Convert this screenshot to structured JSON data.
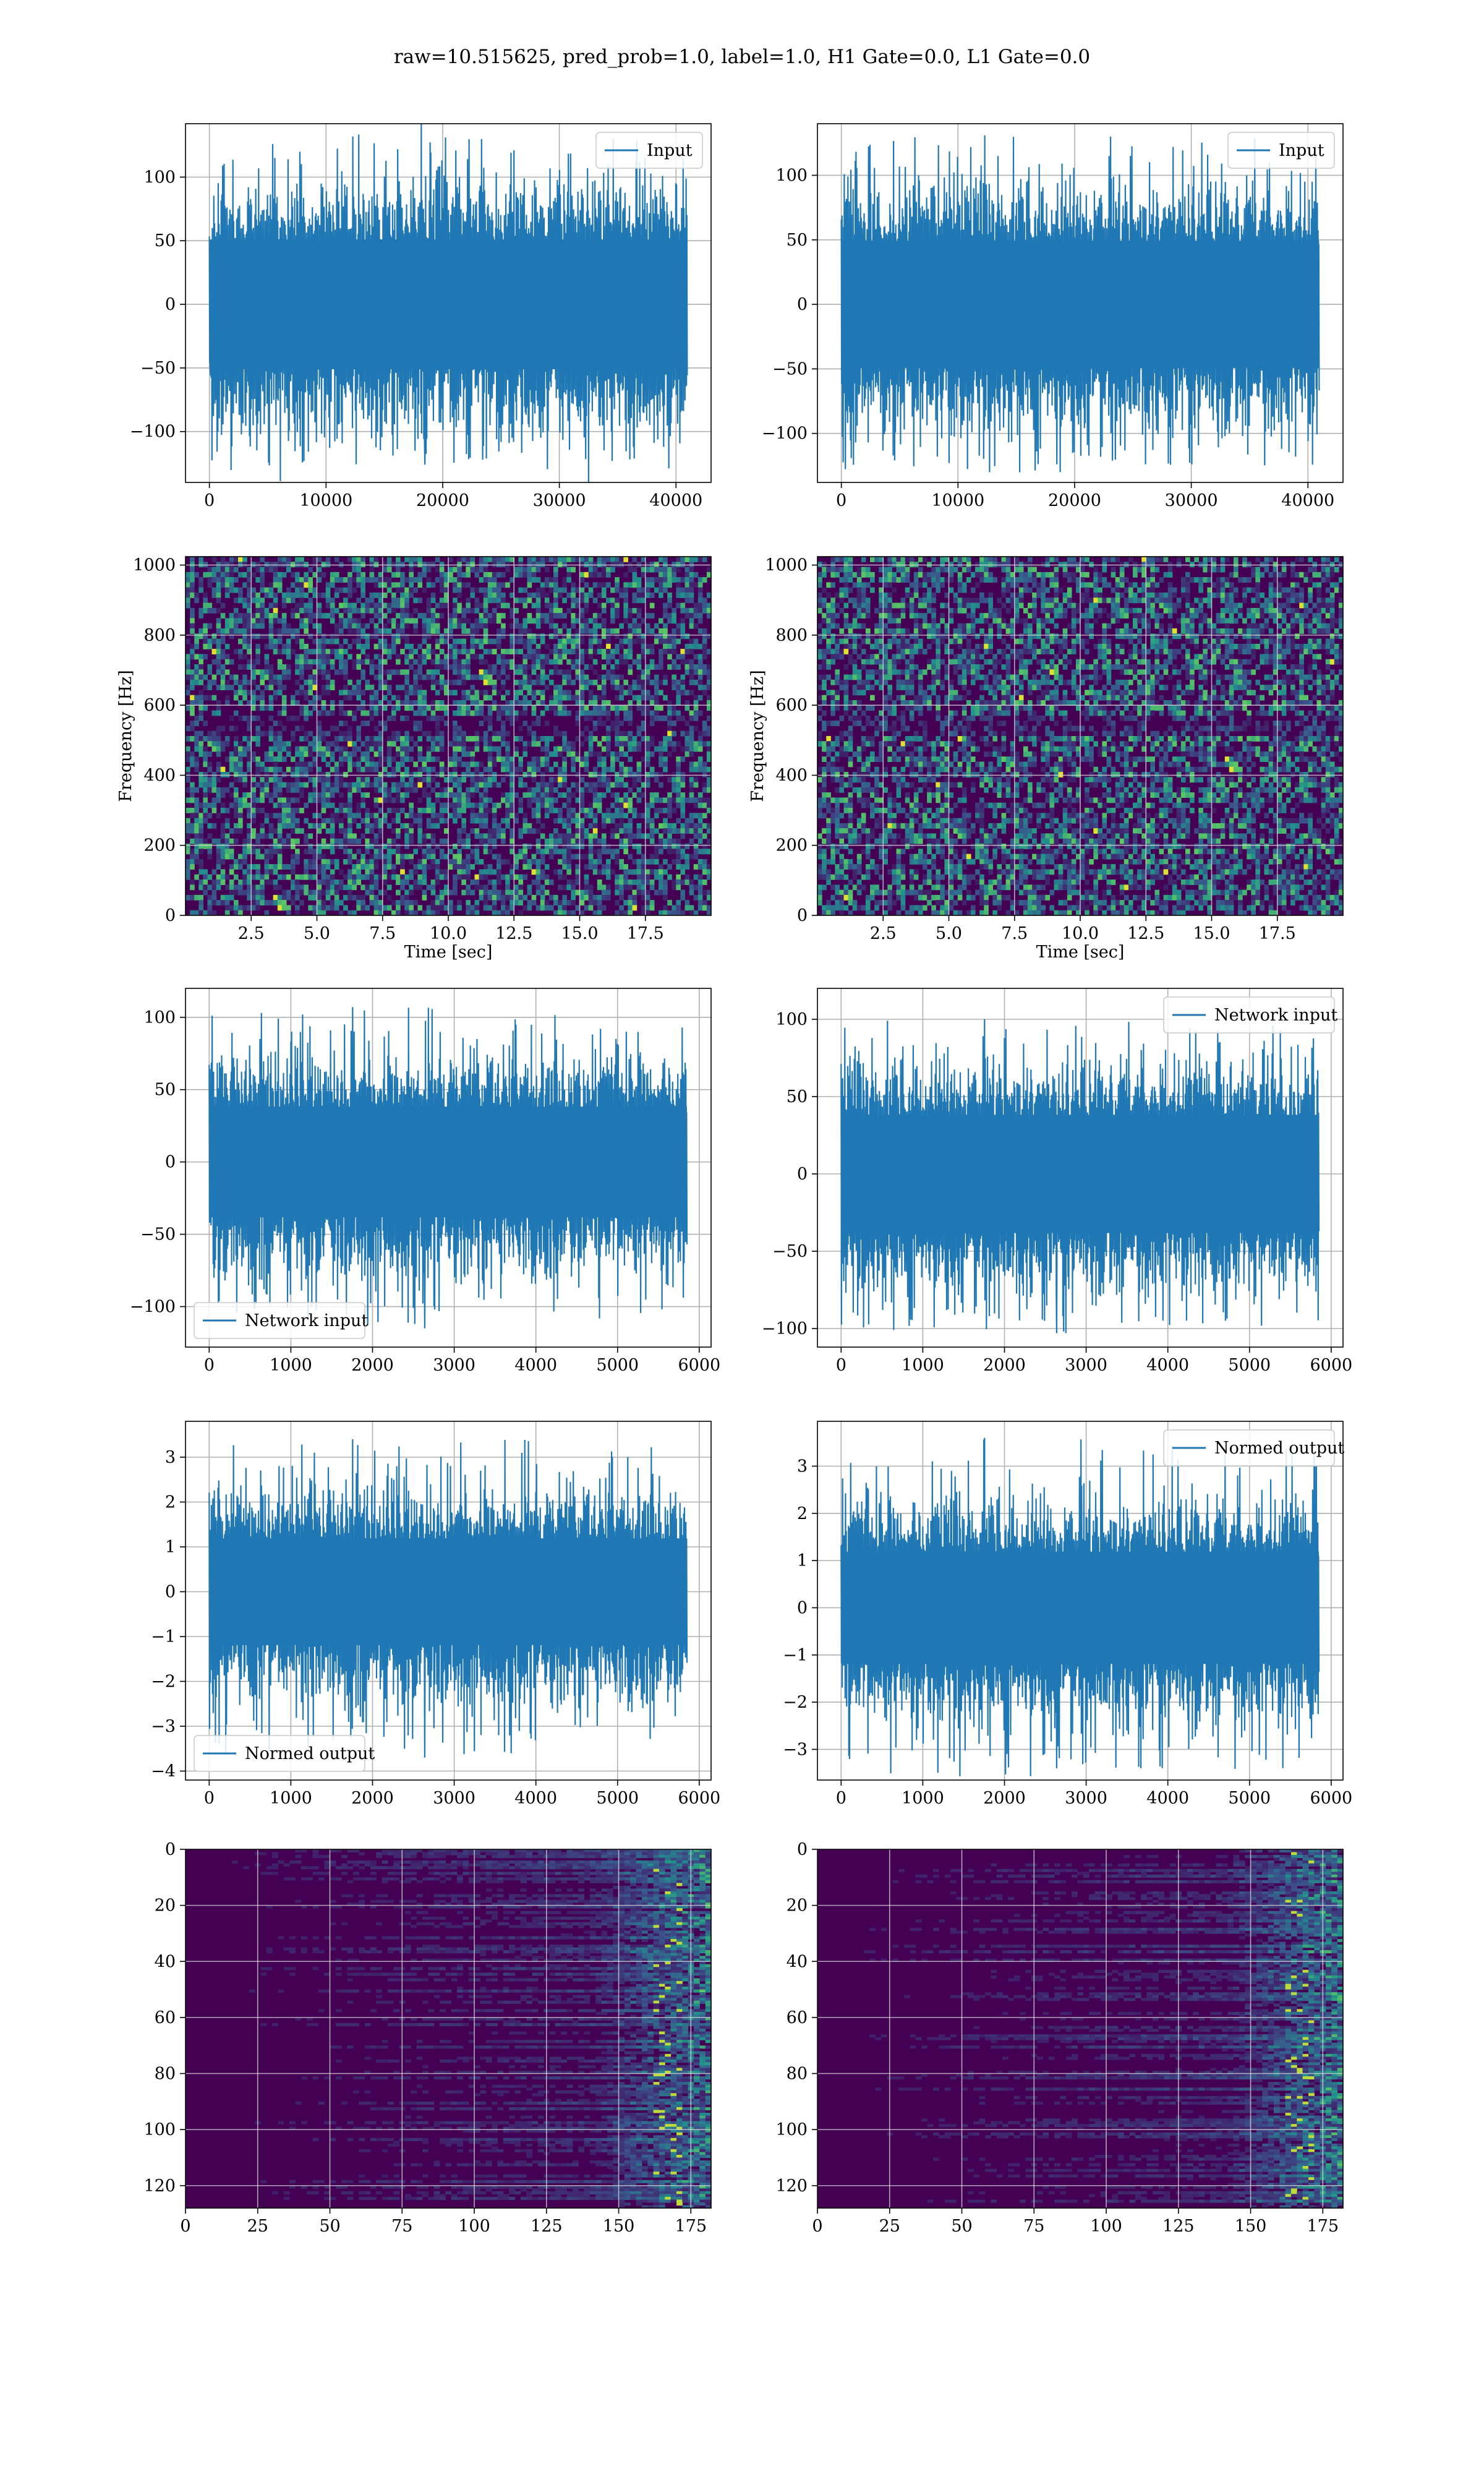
{
  "figure": {
    "suptitle": "raw=10.515625, pred_prob=1.0, label=1.0, H1 Gate=0.0, L1 Gate=0.0",
    "colors": {
      "line": "#1f77b4",
      "grid": "#b0b0b0",
      "viridis_low": "#440154",
      "viridis_mid": "#21918c",
      "viridis_high": "#fde725"
    }
  },
  "chart_data": [
    {
      "type": "line",
      "row": 1,
      "col": "left",
      "legend": "Input",
      "legend_loc": "upper right",
      "x": [
        0,
        40960
      ],
      "xlim": [
        -2048,
        43008
      ],
      "xticks": [
        0,
        10000,
        20000,
        30000,
        40000
      ],
      "ylim": [
        -140,
        142
      ],
      "yticks": [
        -100,
        -50,
        0,
        50,
        100
      ],
      "grid": true,
      "series": [
        {
          "name": "Input",
          "core_amplitude": 60,
          "peak_max": 132,
          "peak_min": -126
        }
      ]
    },
    {
      "type": "line",
      "row": 1,
      "col": "right",
      "legend": "Input",
      "legend_loc": "upper right",
      "x": [
        0,
        40960
      ],
      "xlim": [
        -2048,
        43008
      ],
      "xticks": [
        0,
        10000,
        20000,
        30000,
        40000
      ],
      "ylim": [
        -138,
        140
      ],
      "yticks": [
        -100,
        -50,
        0,
        50,
        100
      ],
      "grid": true,
      "series": [
        {
          "name": "Input",
          "core_amplitude": 58,
          "peak_max": 131,
          "peak_min": -124
        }
      ]
    },
    {
      "type": "heatmap",
      "row": 2,
      "col": "left",
      "xlabel": "Time [sec]",
      "ylabel": "Frequency [Hz]",
      "xlim": [
        0,
        20
      ],
      "xticks": [
        2.5,
        5.0,
        7.5,
        10.0,
        12.5,
        15.0,
        17.5
      ],
      "ylim": [
        0,
        1024
      ],
      "yticks": [
        0,
        200,
        400,
        600,
        800,
        1000
      ],
      "grid": true,
      "colormap": "viridis"
    },
    {
      "type": "heatmap",
      "row": 2,
      "col": "right",
      "xlabel": "Time [sec]",
      "ylabel": "Frequency [Hz]",
      "xlim": [
        0,
        20
      ],
      "xticks": [
        2.5,
        5.0,
        7.5,
        10.0,
        12.5,
        15.0,
        17.5
      ],
      "ylim": [
        0,
        1024
      ],
      "yticks": [
        0,
        200,
        400,
        600,
        800,
        1000
      ],
      "grid": true,
      "colormap": "viridis"
    },
    {
      "type": "line",
      "row": 3,
      "col": "left",
      "legend": "Network input",
      "legend_loc": "lower left",
      "x": [
        0,
        5850
      ],
      "xlim": [
        -290,
        6145
      ],
      "xticks": [
        0,
        1000,
        2000,
        3000,
        4000,
        5000,
        6000
      ],
      "ylim": [
        -128,
        120
      ],
      "yticks": [
        -100,
        -50,
        0,
        50,
        100
      ],
      "grid": true,
      "series": [
        {
          "name": "Network input",
          "core_amplitude": 45,
          "peak_max": 107,
          "peak_min": -115
        }
      ]
    },
    {
      "type": "line",
      "row": 3,
      "col": "right",
      "legend": "Network input",
      "legend_loc": "upper right",
      "x": [
        0,
        5850
      ],
      "xlim": [
        -290,
        6145
      ],
      "xticks": [
        0,
        1000,
        2000,
        3000,
        4000,
        5000,
        6000
      ],
      "ylim": [
        -112,
        120
      ],
      "yticks": [
        -100,
        -50,
        0,
        50,
        100
      ],
      "grid": true,
      "series": [
        {
          "name": "Network input",
          "core_amplitude": 45,
          "peak_max": 100,
          "peak_min": -103
        }
      ]
    },
    {
      "type": "line",
      "row": 4,
      "col": "left",
      "legend": "Normed output",
      "legend_loc": "lower left",
      "x": [
        0,
        5850
      ],
      "xlim": [
        -290,
        6145
      ],
      "xticks": [
        0,
        1000,
        2000,
        3000,
        4000,
        5000,
        6000
      ],
      "ylim": [
        -4.2,
        3.8
      ],
      "yticks": [
        -4,
        -3,
        -2,
        -1,
        0,
        1,
        2,
        3
      ],
      "grid": true,
      "series": [
        {
          "name": "Normed output",
          "core_amplitude": 1.4,
          "peak_max": 3.4,
          "peak_min": -3.7
        }
      ]
    },
    {
      "type": "line",
      "row": 4,
      "col": "right",
      "legend": "Normed output",
      "legend_loc": "upper right",
      "x": [
        0,
        5850
      ],
      "xlim": [
        -290,
        6145
      ],
      "xticks": [
        0,
        1000,
        2000,
        3000,
        4000,
        5000,
        6000
      ],
      "ylim": [
        -3.65,
        3.95
      ],
      "yticks": [
        -3,
        -2,
        -1,
        0,
        1,
        2,
        3
      ],
      "grid": true,
      "series": [
        {
          "name": "Normed output",
          "core_amplitude": 1.4,
          "peak_max": 3.6,
          "peak_min": -3.4
        }
      ]
    },
    {
      "type": "heatmap",
      "row": 5,
      "col": "left",
      "xlim": [
        0,
        182
      ],
      "xticks": [
        0,
        25,
        50,
        75,
        100,
        125,
        150,
        175
      ],
      "ylim": [
        128,
        0
      ],
      "yticks": [
        0,
        20,
        40,
        60,
        80,
        100,
        120
      ],
      "grid": true,
      "colormap": "viridis",
      "hotspot_x_range": [
        150,
        180
      ]
    },
    {
      "type": "heatmap",
      "row": 5,
      "col": "right",
      "xlim": [
        0,
        182
      ],
      "xticks": [
        0,
        25,
        50,
        75,
        100,
        125,
        150,
        175
      ],
      "ylim": [
        128,
        0
      ],
      "yticks": [
        0,
        20,
        40,
        60,
        80,
        100,
        120
      ],
      "grid": true,
      "colormap": "viridis",
      "hotspot_x_range": [
        150,
        180
      ]
    }
  ]
}
